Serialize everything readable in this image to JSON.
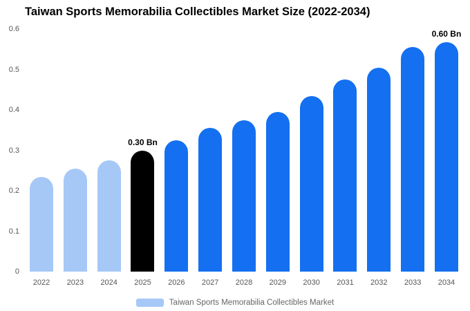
{
  "title": "Taiwan Sports Memorabilia Collectibles Market Size (2022-2034)",
  "legend": {
    "label": "Taiwan Sports Memorabilia Collectibles Market",
    "swatch_color": "#a6c8f7"
  },
  "colors": {
    "light_blue": "#a6c8f7",
    "highlight_black": "#000000",
    "primary_blue": "#1470f0"
  },
  "chart_data": {
    "type": "bar",
    "title": "Taiwan Sports Memorabilia Collectibles Market Size (2022-2034)",
    "categories": [
      "2022",
      "2023",
      "2024",
      "2025",
      "2026",
      "2027",
      "2028",
      "2029",
      "2030",
      "2031",
      "2032",
      "2033",
      "2034"
    ],
    "values": [
      0.235,
      0.255,
      0.275,
      0.3,
      0.325,
      0.355,
      0.375,
      0.395,
      0.435,
      0.475,
      0.505,
      0.555,
      0.595
    ],
    "bar_colors": [
      "#a6c8f7",
      "#a6c8f7",
      "#a6c8f7",
      "#000000",
      "#1470f0",
      "#1470f0",
      "#1470f0",
      "#1470f0",
      "#1470f0",
      "#1470f0",
      "#1470f0",
      "#1470f0",
      "#1470f0"
    ],
    "annotations": [
      {
        "index": 3,
        "text": "0.30 Bn"
      },
      {
        "index": 12,
        "text": "0.60 Bn"
      }
    ],
    "xlabel": "",
    "ylabel": "",
    "ylim": [
      0,
      0.6
    ],
    "yticks": [
      0,
      0.1,
      0.2,
      0.3,
      0.4,
      0.5,
      0.6
    ],
    "grid": false,
    "legend_position": "bottom"
  }
}
